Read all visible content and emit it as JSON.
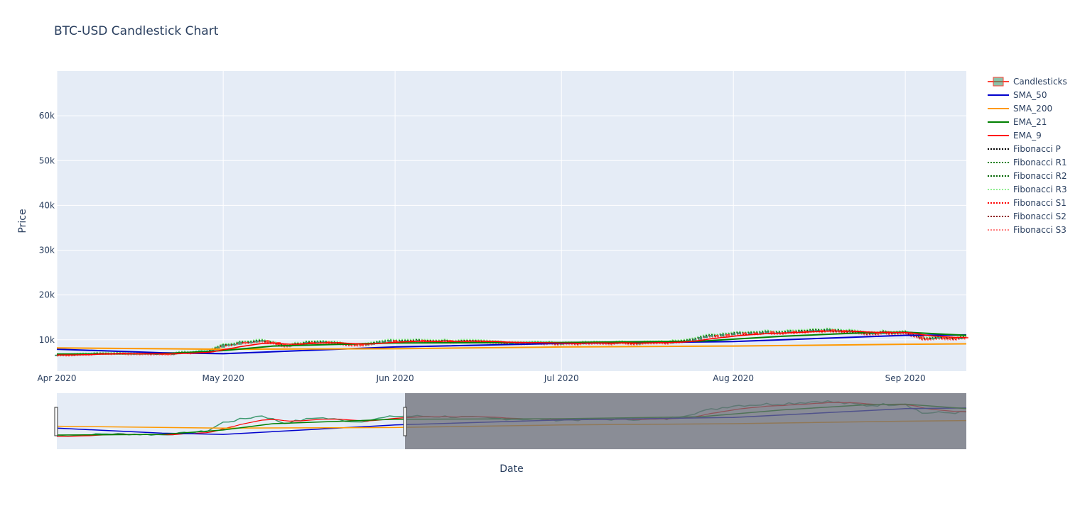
{
  "chart_data": {
    "type": "candlestick",
    "title": "BTC-USD Candlestick Chart",
    "xlabel": "Date",
    "ylabel": "Price",
    "ylim": [
      3000,
      70000
    ],
    "xlim": [
      "2020-04-01",
      "2020-09-12"
    ],
    "y_ticks": [
      10000,
      20000,
      30000,
      40000,
      50000,
      60000
    ],
    "y_tick_labels": [
      "10k",
      "20k",
      "30k",
      "40k",
      "50k",
      "60k"
    ],
    "x_ticks": [
      "2020-04-01",
      "2020-05-01",
      "2020-06-01",
      "2020-07-01",
      "2020-08-01",
      "2020-09-01"
    ],
    "x_tick_labels": [
      "Apr 2020",
      "May 2020",
      "Jun 2020",
      "Jul 2020",
      "Aug 2020",
      "Sep 2020"
    ],
    "grid": true,
    "legend_placement": "right",
    "colors": {
      "plot_bg": "#e5ecf6",
      "increasing": "#3d9970",
      "decreasing": "#ff4136",
      "rangeslider_mask": "#6b6e76"
    },
    "close": {
      "dates": [
        "2020-04-01",
        "2020-04-10",
        "2020-04-20",
        "2020-04-28",
        "2020-05-01",
        "2020-05-08",
        "2020-05-12",
        "2020-05-18",
        "2020-05-25",
        "2020-06-01",
        "2020-06-10",
        "2020-06-20",
        "2020-07-01",
        "2020-07-10",
        "2020-07-20",
        "2020-07-26",
        "2020-08-01",
        "2020-08-10",
        "2020-08-17",
        "2020-08-25",
        "2020-09-01",
        "2020-09-04",
        "2020-09-12"
      ],
      "values": [
        6600,
        7000,
        6850,
        7400,
        8800,
        9900,
        8700,
        9600,
        8900,
        9800,
        9750,
        9400,
        9200,
        9300,
        9350,
        10500,
        11500,
        11800,
        12200,
        11500,
        11800,
        10300,
        10400
      ]
    },
    "series": [
      {
        "name": "Candlesticks",
        "style": "candle"
      },
      {
        "name": "SMA_50",
        "color": "#0000cc",
        "dash": "solid",
        "x": [
          "2020-04-01",
          "2020-04-20",
          "2020-05-01",
          "2020-06-01",
          "2020-07-01",
          "2020-08-01",
          "2020-09-01",
          "2020-09-12"
        ],
        "values": [
          7900,
          7100,
          6900,
          8400,
          9200,
          9600,
          11000,
          11100
        ]
      },
      {
        "name": "SMA_200",
        "color": "#ff9900",
        "dash": "solid",
        "x": [
          "2020-04-01",
          "2020-05-01",
          "2020-06-01",
          "2020-07-01",
          "2020-08-01",
          "2020-09-01",
          "2020-09-12"
        ],
        "values": [
          8200,
          7900,
          8000,
          8400,
          8600,
          9000,
          9100
        ]
      },
      {
        "name": "EMA_21",
        "color": "#008000",
        "dash": "solid",
        "x": [
          "2020-04-01",
          "2020-04-20",
          "2020-05-01",
          "2020-05-10",
          "2020-06-01",
          "2020-07-01",
          "2020-07-26",
          "2020-08-10",
          "2020-08-25",
          "2020-09-01",
          "2020-09-12"
        ],
        "values": [
          6800,
          6900,
          7600,
          8600,
          9300,
          9400,
          9700,
          10800,
          11600,
          11700,
          11000
        ]
      },
      {
        "name": "EMA_9",
        "color": "#ff0000",
        "dash": "solid"
      },
      {
        "name": "Fibonacci P",
        "color": "#000000",
        "dash": "dot"
      },
      {
        "name": "Fibonacci R1",
        "color": "#008000",
        "dash": "dot"
      },
      {
        "name": "Fibonacci R2",
        "color": "#006400",
        "dash": "dot"
      },
      {
        "name": "Fibonacci R3",
        "color": "#90ee90",
        "dash": "dot"
      },
      {
        "name": "Fibonacci S1",
        "color": "#ff0000",
        "dash": "dot"
      },
      {
        "name": "Fibonacci S2",
        "color": "#8b0000",
        "dash": "dot"
      },
      {
        "name": "Fibonacci S3",
        "color": "#ff7f7f",
        "dash": "dot"
      }
    ],
    "rangeslider": {
      "selected_range": [
        "2020-04-01",
        "2020-09-12"
      ]
    }
  }
}
